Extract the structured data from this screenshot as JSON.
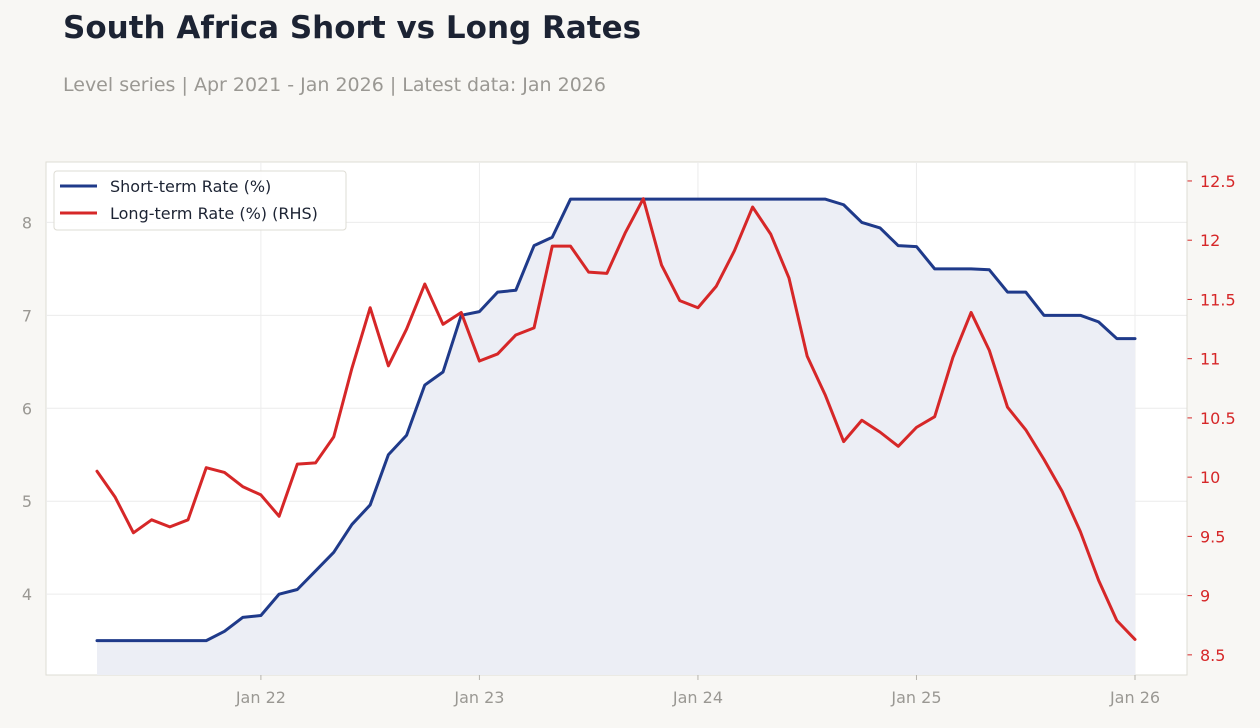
{
  "title": "South Africa Short vs Long Rates",
  "subtitle": "Level series | Apr 2021 - Jan 2026 | Latest data: Jan 2026",
  "colors": {
    "background": "#f8f7f4",
    "plot_background": "#ffffff",
    "short": "#1f3a8a",
    "long": "#d62728",
    "fill": "#eceef5",
    "grid": "#ececec",
    "frame": "#dedcd4"
  },
  "chart_data": {
    "type": "line",
    "title": "South Africa Short vs Long Rates",
    "subtitle": "Level series | Apr 2021 - Jan 2026 | Latest data: Jan 2026",
    "x": [
      "2021-04",
      "2021-05",
      "2021-06",
      "2021-07",
      "2021-08",
      "2021-09",
      "2021-10",
      "2021-11",
      "2021-12",
      "2022-01",
      "2022-02",
      "2022-03",
      "2022-04",
      "2022-05",
      "2022-06",
      "2022-07",
      "2022-08",
      "2022-09",
      "2022-10",
      "2022-11",
      "2022-12",
      "2023-01",
      "2023-02",
      "2023-03",
      "2023-04",
      "2023-05",
      "2023-06",
      "2023-07",
      "2023-08",
      "2023-09",
      "2023-10",
      "2023-11",
      "2023-12",
      "2024-01",
      "2024-02",
      "2024-03",
      "2024-04",
      "2024-05",
      "2024-06",
      "2024-07",
      "2024-08",
      "2024-09",
      "2024-10",
      "2024-11",
      "2024-12",
      "2025-01",
      "2025-02",
      "2025-03",
      "2025-04",
      "2025-05",
      "2025-06",
      "2025-07",
      "2025-08",
      "2025-09",
      "2025-10",
      "2025-11",
      "2025-12",
      "2026-01"
    ],
    "x_ticks": [
      "Jan 22",
      "Jan 23",
      "Jan 24",
      "Jan 25",
      "Jan 26"
    ],
    "x_tick_dates": [
      "2022-01",
      "2023-01",
      "2024-01",
      "2025-01",
      "2026-01"
    ],
    "series": [
      {
        "name": "Short-term Rate (%)",
        "axis": "left",
        "color": "#1f3a8a",
        "fill": true,
        "values": [
          3.5,
          3.5,
          3.5,
          3.5,
          3.5,
          3.5,
          3.5,
          3.6,
          3.75,
          3.77,
          4.0,
          4.05,
          4.25,
          4.45,
          4.75,
          4.96,
          5.5,
          5.71,
          6.25,
          6.39,
          7.0,
          7.04,
          7.25,
          7.27,
          7.75,
          7.84,
          8.25,
          8.25,
          8.25,
          8.25,
          8.25,
          8.25,
          8.25,
          8.25,
          8.25,
          8.25,
          8.25,
          8.25,
          8.25,
          8.25,
          8.25,
          8.19,
          8.0,
          7.94,
          7.75,
          7.74,
          7.5,
          7.5,
          7.5,
          7.49,
          7.25,
          7.25,
          7.0,
          7.0,
          7.0,
          6.93,
          6.75,
          6.75
        ]
      },
      {
        "name": "Long-term Rate (%) (RHS)",
        "axis": "right",
        "color": "#d62728",
        "fill": false,
        "values": [
          10.05,
          9.83,
          9.53,
          9.64,
          9.58,
          9.64,
          10.08,
          10.04,
          9.92,
          9.85,
          9.67,
          10.11,
          10.12,
          10.34,
          10.92,
          11.43,
          10.94,
          11.25,
          11.63,
          11.29,
          11.39,
          10.98,
          11.04,
          11.2,
          11.26,
          11.95,
          11.95,
          11.73,
          11.72,
          12.06,
          12.35,
          11.79,
          11.49,
          11.43,
          11.61,
          11.91,
          12.28,
          12.05,
          11.68,
          11.02,
          10.69,
          10.3,
          10.48,
          10.38,
          10.26,
          10.42,
          10.51,
          11.01,
          11.39,
          11.07,
          10.59,
          10.4,
          10.15,
          9.88,
          9.54,
          9.13,
          8.79,
          8.63
        ]
      }
    ],
    "ylim": [
      3.13,
      8.65
    ],
    "yticks": [
      4,
      5,
      6,
      7,
      8
    ],
    "y2lim": [
      8.33,
      12.66
    ],
    "y2ticks": [
      8.5,
      9,
      9.5,
      10,
      10.5,
      11,
      11.5,
      12,
      12.5
    ],
    "xlabel": "",
    "ylabel": "",
    "y2label": "",
    "grid": true,
    "legend_position": "top-left"
  }
}
